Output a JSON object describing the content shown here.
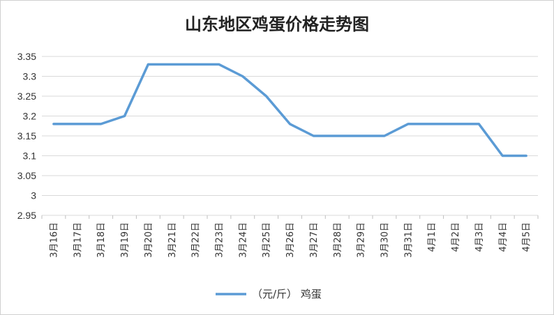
{
  "chart_data": {
    "type": "line",
    "title": "山东地区鸡蛋价格走势图",
    "categories": [
      "3月16日",
      "3月17日",
      "3月18日",
      "3月19日",
      "3月20日",
      "3月21日",
      "3月22日",
      "3月23日",
      "3月24日",
      "3月25日",
      "3月26日",
      "3月27日",
      "3月28日",
      "3月29日",
      "3月30日",
      "3月31日",
      "4月1日",
      "4月2日",
      "4月3日",
      "4月4日",
      "4月5日"
    ],
    "series": [
      {
        "name": "（元/斤） 鸡蛋",
        "values": [
          3.18,
          3.18,
          3.18,
          3.2,
          3.33,
          3.33,
          3.33,
          3.33,
          3.3,
          3.25,
          3.18,
          3.15,
          3.15,
          3.15,
          3.15,
          3.18,
          3.18,
          3.18,
          3.18,
          3.1,
          3.1
        ],
        "color": "#5B9BD5"
      }
    ],
    "ylim": [
      2.95,
      3.35
    ],
    "yticks": [
      "2.95",
      "3",
      "3.05",
      "3.1",
      "3.15",
      "3.2",
      "3.25",
      "3.3",
      "3.35"
    ],
    "grid": true,
    "legend_position": "bottom"
  }
}
